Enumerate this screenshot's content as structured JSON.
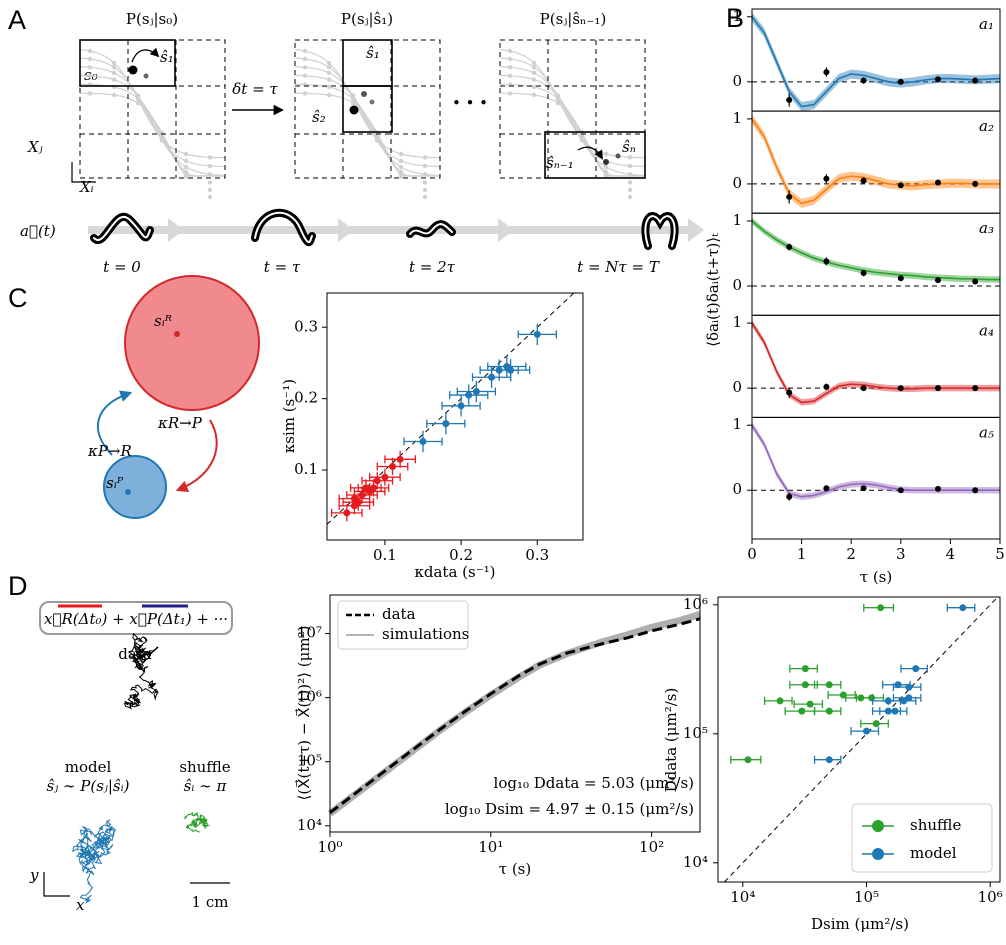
{
  "panels": {
    "a": "A",
    "b": "B",
    "c": "C",
    "d": "D"
  },
  "panel_a": {
    "titles": [
      "P(sⱼ|s₀)",
      "P(sⱼ|ŝ₁)",
      "P(sⱼ|ŝₙ₋₁)"
    ],
    "states": [
      "ŝ₁",
      "s₀",
      "ŝ₁",
      "ŝ₂",
      "ŝₙ",
      "ŝₙ₋₁"
    ],
    "step": "δt = τ",
    "axis_y": "Xⱼ",
    "axis_x": "Xᵢ",
    "posture": "a⃗(t)",
    "times": [
      "t = 0",
      "t = τ",
      "t = 2τ",
      "t = Nτ = T"
    ]
  },
  "panel_c": {
    "state_r": "sᵢᴿ",
    "state_p": "sᵢᴾ",
    "rate_rp": "κR→P",
    "rate_pr": "κP→R"
  },
  "panel_d": {
    "concat": "x⃗R(Δt₀) + x⃗P(Δt₁) + ···",
    "data": "data",
    "model": "model",
    "model_rule": "ŝⱼ ∼ P(sⱼ|ŝᵢ)",
    "shuffle": "shuffle",
    "shuffle_rule": "ŝᵢ ∼ π",
    "axis_y": "y",
    "axis_x": "x",
    "scale": "1 cm"
  },
  "chart_data": [
    {
      "type": "line",
      "xlabel": "τ (s)",
      "ylabel": "⟨δaᵢ(t)δaᵢ(t+τ)⟩ₜ",
      "xlim": [
        0,
        5
      ],
      "xticks": [
        0,
        1,
        2,
        3,
        4,
        5
      ],
      "zero_line": true,
      "x": [
        0,
        0.25,
        0.5,
        0.75,
        1,
        1.25,
        1.5,
        1.75,
        2,
        2.25,
        2.5,
        2.75,
        3,
        3.25,
        3.5,
        3.75,
        4,
        4.25,
        4.5,
        4.75,
        5
      ],
      "points_x": [
        0.75,
        1.5,
        2.25,
        3,
        3.75,
        4.5
      ],
      "series": [
        {
          "name": "a₁",
          "color": "#1f77b4",
          "ylim": [
            -0.45,
            1.12
          ],
          "yticks": [
            0,
            1
          ],
          "ci": 0.07,
          "values": [
            1,
            0.75,
            0.3,
            -0.15,
            -0.38,
            -0.35,
            -0.15,
            0.05,
            0.12,
            0.1,
            0.05,
            0,
            -0.02,
            0,
            0.03,
            0.05,
            0.05,
            0.04,
            0.03,
            0.04,
            0.05
          ],
          "points": [
            -0.28,
            0.15,
            0.02,
            0,
            0.04,
            0.02
          ],
          "errors": [
            0.1,
            0.07,
            0.05,
            0.04,
            0.03,
            0.03
          ]
        },
        {
          "name": "a₂",
          "color": "#ff7f0e",
          "ylim": [
            -0.45,
            1.12
          ],
          "yticks": [
            0,
            1
          ],
          "ci": 0.07,
          "values": [
            1,
            0.72,
            0.25,
            -0.15,
            -0.3,
            -0.25,
            -0.08,
            0.08,
            0.12,
            0.1,
            0.05,
            0,
            -0.02,
            -0.03,
            -0.01,
            0,
            0.01,
            0.01,
            0,
            0,
            0
          ],
          "points": [
            -0.2,
            0.08,
            0.05,
            -0.02,
            0.02,
            0
          ],
          "errors": [
            0.1,
            0.07,
            0.05,
            0.04,
            0.03,
            0.03
          ]
        },
        {
          "name": "a₃",
          "color": "#2ca02c",
          "ylim": [
            -0.45,
            1.12
          ],
          "yticks": [
            0,
            1
          ],
          "ci": 0.05,
          "values": [
            1,
            0.84,
            0.71,
            0.6,
            0.51,
            0.43,
            0.37,
            0.32,
            0.28,
            0.24,
            0.21,
            0.19,
            0.17,
            0.16,
            0.14,
            0.13,
            0.12,
            0.11,
            0.11,
            0.1,
            0.1
          ],
          "points": [
            0.6,
            0.38,
            0.2,
            0.12,
            0.09,
            0.07
          ],
          "errors": [
            0.05,
            0.06,
            0.05,
            0.04,
            0.03,
            0.03
          ]
        },
        {
          "name": "a₄",
          "color": "#d62728",
          "ylim": [
            -0.45,
            1.12
          ],
          "yticks": [
            0,
            1
          ],
          "ci": 0.05,
          "values": [
            1,
            0.7,
            0.25,
            -0.1,
            -0.22,
            -0.2,
            -0.08,
            0.03,
            0.06,
            0.05,
            0.02,
            0,
            -0.01,
            -0.01,
            0,
            0,
            0,
            0,
            0,
            0,
            0
          ],
          "points": [
            -0.07,
            0.02,
            0,
            0,
            0,
            0
          ],
          "errors": [
            0.08,
            0.05,
            0.04,
            0.03,
            0.03,
            0.03
          ]
        },
        {
          "name": "a₅",
          "color": "#9467bd",
          "ylim": [
            -0.75,
            1.12
          ],
          "yticks": [
            0,
            1
          ],
          "ci": 0.05,
          "values": [
            1,
            0.7,
            0.25,
            -0.05,
            -0.1,
            -0.08,
            -0.02,
            0.05,
            0.09,
            0.1,
            0.08,
            0.04,
            0.01,
            0,
            0,
            0,
            0,
            0,
            0,
            0,
            0
          ],
          "points": [
            -0.1,
            0.03,
            0.03,
            0,
            0.02,
            0
          ],
          "errors": [
            0.06,
            0.04,
            0.03,
            0.03,
            0.03,
            0.03
          ]
        }
      ]
    },
    {
      "type": "scatter",
      "xlabel": "κdata (s⁻¹)",
      "ylabel": "κsim (s⁻¹)",
      "xlim": [
        0.024,
        0.36
      ],
      "ylim": [
        0.002,
        0.348
      ],
      "xticks": [
        0.1,
        0.2,
        0.3
      ],
      "yticks": [
        0.1,
        0.2,
        0.3
      ],
      "diagonal": true,
      "series": [
        {
          "color": "#e8191f",
          "x": [
            0.05,
            0.06,
            0.065,
            0.07,
            0.06,
            0.075,
            0.08,
            0.09,
            0.1,
            0.11,
            0.12,
            0.085
          ],
          "values": [
            0.04,
            0.05,
            0.055,
            0.065,
            0.06,
            0.075,
            0.07,
            0.085,
            0.09,
            0.105,
            0.115,
            0.075
          ],
          "xerr": 0.02,
          "yerr": 0.012
        },
        {
          "color": "#1f77b4",
          "x": [
            0.15,
            0.18,
            0.2,
            0.21,
            0.22,
            0.24,
            0.25,
            0.26,
            0.265,
            0.3
          ],
          "values": [
            0.14,
            0.165,
            0.19,
            0.205,
            0.21,
            0.23,
            0.24,
            0.245,
            0.24,
            0.29
          ],
          "xerr": 0.025,
          "yerr": 0.015
        }
      ]
    },
    {
      "type": "line",
      "log_x": true,
      "log_y": true,
      "xlabel": "τ (s)",
      "ylabel": "⟨(X⃗(t+τ) − X⃗(t))²⟩ (μm²)",
      "xlim": [
        1,
        200
      ],
      "ylim": [
        8000,
        40000000
      ],
      "xticks": [
        {
          "value": 1,
          "label": "10⁰"
        },
        {
          "value": 10,
          "label": "10¹"
        },
        {
          "value": 100,
          "label": "10²"
        }
      ],
      "yticks": [
        {
          "value": 10000,
          "label": "10⁴"
        },
        {
          "value": 100000,
          "label": "10⁵"
        },
        {
          "value": 1000000,
          "label": "10⁶"
        },
        {
          "value": 10000000,
          "label": "10⁷"
        }
      ],
      "x": [
        1,
        2,
        3,
        5,
        7,
        10,
        15,
        20,
        30,
        50,
        70,
        100,
        150,
        200
      ],
      "series": [
        {
          "name": "simulations",
          "color": "#9a9a9a",
          "values": [
            15500,
            58000,
            125000,
            330000,
            600000,
            1100000,
            2100000,
            3200000,
            4900000,
            7500000,
            9500000,
            12500000,
            16000000,
            20000000
          ]
        },
        {
          "name": "data",
          "color": "#000000",
          "dash": true,
          "values": [
            16000,
            60000,
            130000,
            340000,
            620000,
            1150000,
            2200000,
            3300000,
            5000000,
            7000000,
            8500000,
            11000000,
            14000000,
            17000000
          ]
        }
      ],
      "legend": "upper left",
      "annotations": [
        "log₁₀ Ddata = 5.03 (μm²/s)",
        "log₁₀ Dsim = 4.97 ± 0.15 (μm²/s)"
      ]
    },
    {
      "type": "scatter",
      "log_x": true,
      "log_y": true,
      "xlabel": "Dsim (μm²/s)",
      "ylabel": "Ddata (μm²/s)",
      "xlim": [
        6300,
        1200000
      ],
      "ylim": [
        7100,
        1150000
      ],
      "diagonal": true,
      "xticks": [
        {
          "value": 10000,
          "label": "10⁴"
        },
        {
          "value": 100000,
          "label": "10⁵"
        },
        {
          "value": 1000000,
          "label": "10⁶"
        }
      ],
      "yticks": [
        {
          "value": 10000,
          "label": "10⁴"
        },
        {
          "value": 100000,
          "label": "10⁵"
        },
        {
          "value": 1000000,
          "label": "10⁶"
        }
      ],
      "legend": "lower right",
      "series": [
        {
          "name": "shuffle",
          "color": "#2ca02c",
          "x": [
            130000,
            32000,
            32000,
            50000,
            65000,
            20000,
            35000,
            30000,
            50000,
            90000,
            110000,
            120000,
            11000
          ],
          "values": [
            950000,
            320000,
            240000,
            240000,
            200000,
            180000,
            170000,
            150000,
            150000,
            190000,
            190000,
            120000,
            63000
          ],
          "xerr": [
            35000,
            8000,
            8000,
            12000,
            16000,
            5000,
            9000,
            8000,
            12000,
            22000,
            27000,
            30000,
            3000
          ]
        },
        {
          "name": "model",
          "color": "#1f77b4",
          "x": [
            600000,
            250000,
            180000,
            220000,
            150000,
            200000,
            150000,
            170000,
            220000,
            100000,
            50000
          ],
          "values": [
            950000,
            320000,
            240000,
            230000,
            180000,
            180000,
            150000,
            150000,
            190000,
            105000,
            63000
          ],
          "xerr": [
            150000,
            60000,
            45000,
            55000,
            38000,
            50000,
            38000,
            42000,
            55000,
            25000,
            12000
          ]
        }
      ]
    }
  ]
}
